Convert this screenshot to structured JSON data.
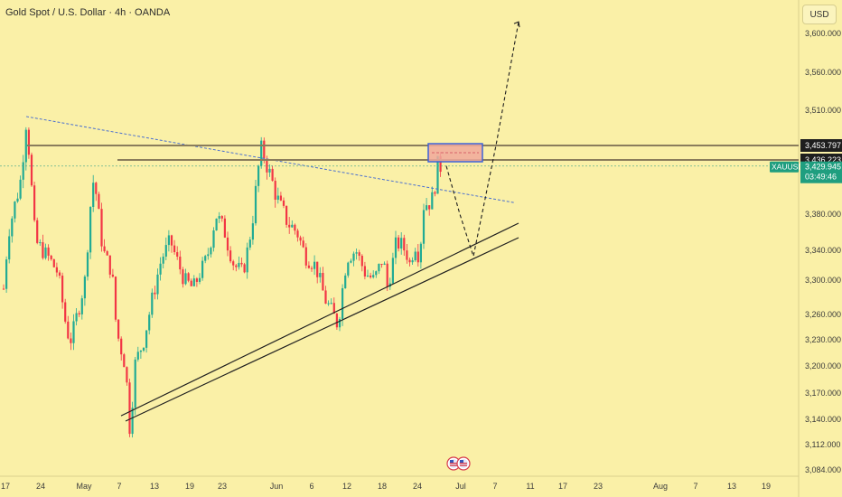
{
  "header": {
    "title": "Gold Spot / U.S. Dollar · 4h · OANDA",
    "currency": "USD"
  },
  "colors": {
    "background": "#faf0a7",
    "up": "#22ab94",
    "down": "#f23645",
    "resistance_line": "#8a7d5c",
    "zone_fill": "#f0a89b",
    "zone_border": "#3d63d8",
    "price_tag": "#1f9e7f"
  },
  "chart_data": {
    "type": "candlestick",
    "instrument": "XAUUSD",
    "timeframe": "4h",
    "x_tick_labels": [
      "17",
      "24",
      "May",
      "7",
      "13",
      "19",
      "23",
      "Jun",
      "6",
      "12",
      "18",
      "24",
      "Jul",
      "7",
      "11",
      "17",
      "23",
      "Aug",
      "7",
      "13",
      "19"
    ],
    "y_tick_labels": [
      "3,600.000",
      "3,560.000",
      "3,510.000",
      "3,453.797",
      "3,436.223",
      "3,380.000",
      "3,340.000",
      "3,300.000",
      "3,260.000",
      "3,230.000",
      "3,200.000",
      "3,170.000",
      "3,140.000",
      "3,112.000",
      "3,084.000"
    ],
    "y_tick_values": [
      3600,
      3560,
      3510,
      3453.797,
      3436.223,
      3380,
      3340,
      3300,
      3260,
      3230,
      3200,
      3170,
      3140,
      3112,
      3084
    ],
    "ylim": [
      3078,
      3645
    ],
    "price_levels": [
      {
        "label": "3,453.797",
        "value": 3453.797
      },
      {
        "label": "3,436.223",
        "value": 3436.223
      }
    ],
    "current_price": {
      "symbol": "XAUUSD",
      "price": "3,429.945",
      "countdown": "03:49:46",
      "value": 3429.945
    },
    "price_path_points": [
      {
        "t": "Apr 17",
        "price": 3290
      },
      {
        "t": "Apr 18",
        "price": 3360
      },
      {
        "t": "Apr 21",
        "price": 3420
      },
      {
        "t": "Apr 22",
        "price": 3490
      },
      {
        "t": "Apr 23",
        "price": 3420
      },
      {
        "t": "Apr 24",
        "price": 3350
      },
      {
        "t": "Apr 27",
        "price": 3330
      },
      {
        "t": "Apr 29",
        "price": 3310
      },
      {
        "t": "May 1",
        "price": 3240
      },
      {
        "t": "May 2",
        "price": 3230
      },
      {
        "t": "May 5",
        "price": 3300
      },
      {
        "t": "May 6",
        "price": 3380
      },
      {
        "t": "May 7",
        "price": 3420
      },
      {
        "t": "May 9",
        "price": 3340
      },
      {
        "t": "May 11",
        "price": 3310
      },
      {
        "t": "May 12",
        "price": 3240
      },
      {
        "t": "May 14",
        "price": 3200
      },
      {
        "t": "May 15",
        "price": 3125
      },
      {
        "t": "May 16",
        "price": 3200
      },
      {
        "t": "May 18",
        "price": 3230
      },
      {
        "t": "May 20",
        "price": 3280
      },
      {
        "t": "May 22",
        "price": 3330
      },
      {
        "t": "May 24",
        "price": 3350
      },
      {
        "t": "May 27",
        "price": 3300
      },
      {
        "t": "May 29",
        "price": 3290
      },
      {
        "t": "Jun 1",
        "price": 3330
      },
      {
        "t": "Jun 3",
        "price": 3380
      },
      {
        "t": "Jun 5",
        "price": 3360
      },
      {
        "t": "Jun 7",
        "price": 3320
      },
      {
        "t": "Jun 9",
        "price": 3310
      },
      {
        "t": "Jun 11",
        "price": 3370
      },
      {
        "t": "Jun 13",
        "price": 3452
      },
      {
        "t": "Jun 15",
        "price": 3420
      },
      {
        "t": "Jun 17",
        "price": 3390
      },
      {
        "t": "Jun 19",
        "price": 3370
      },
      {
        "t": "Jun 21",
        "price": 3360
      },
      {
        "t": "Jun 23",
        "price": 3330
      },
      {
        "t": "Jun 25",
        "price": 3320
      },
      {
        "t": "Jun 27",
        "price": 3280
      },
      {
        "t": "Jun 30",
        "price": 3248
      },
      {
        "t": "Jul 2",
        "price": 3330
      },
      {
        "t": "Jul 4",
        "price": 3340
      },
      {
        "t": "Jul 6",
        "price": 3310
      },
      {
        "t": "Jul 8",
        "price": 3300
      },
      {
        "t": "Jul 10",
        "price": 3330
      },
      {
        "t": "Jul 11",
        "price": 3290
      },
      {
        "t": "Jul 13",
        "price": 3350
      },
      {
        "t": "Jul 15",
        "price": 3340
      },
      {
        "t": "Jul 16",
        "price": 3320
      },
      {
        "t": "Jul 17",
        "price": 3350
      },
      {
        "t": "Jul 18",
        "price": 3330
      },
      {
        "t": "Jul 19",
        "price": 3390
      },
      {
        "t": "Jul 21",
        "price": 3395
      },
      {
        "t": "Jul 22",
        "price": 3430
      },
      {
        "t": "Jul 23",
        "price": 3430
      }
    ],
    "resistance_levels": [
      3453.797,
      3436.223
    ],
    "zone": {
      "from": "Jul 20",
      "to": "Aug 1",
      "low": 3436.223,
      "high": 3453.797
    },
    "descending_trendline": [
      {
        "t": "Apr 22",
        "price": 3500
      },
      {
        "t": "Aug 8",
        "price": 3392
      }
    ],
    "ascending_channel": [
      [
        {
          "t": "May 13",
          "price": 3144
        },
        {
          "t": "Aug 9",
          "price": 3370
        }
      ],
      [
        {
          "t": "May 14",
          "price": 3138
        },
        {
          "t": "Aug 9",
          "price": 3354
        }
      ]
    ],
    "projected_path": [
      {
        "t": "Jul 24",
        "price": 3430
      },
      {
        "t": "Jul 27",
        "price": 3380
      },
      {
        "t": "Jul 30",
        "price": 3332
      },
      {
        "t": "Aug 4",
        "price": 3453.797
      },
      {
        "t": "Aug 9",
        "price": 3612
      }
    ],
    "event_icons": [
      {
        "t": "Jul 24"
      },
      {
        "t": "Jul 25"
      }
    ],
    "grid": false
  }
}
